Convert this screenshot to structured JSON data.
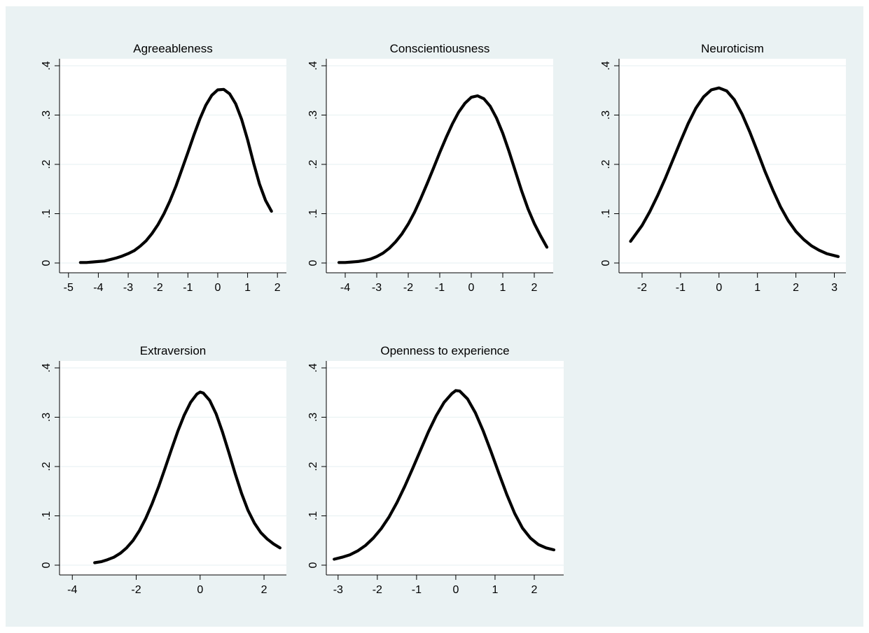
{
  "chart_data": [
    {
      "type": "line",
      "title": "Agreeableness",
      "xlabel": "",
      "ylabel": "",
      "xlim": [
        -5.3,
        2.3
      ],
      "ylim": [
        0,
        0.4
      ],
      "xticks": [
        -5,
        -4,
        -3,
        -2,
        -1,
        0,
        1,
        2
      ],
      "xtick_labels": [
        "-5",
        "-4",
        "-3",
        "-2",
        "-1",
        "0",
        "1",
        "2"
      ],
      "yticks": [
        0,
        0.1,
        0.2,
        0.3,
        0.4
      ],
      "ytick_labels": [
        "0",
        ".1",
        ".2",
        ".3",
        ".4"
      ],
      "grid": true,
      "series": [
        {
          "x": [
            -4.6,
            -4.4,
            -4.2,
            -4.0,
            -3.8,
            -3.6,
            -3.4,
            -3.2,
            -3.0,
            -2.8,
            -2.6,
            -2.4,
            -2.2,
            -2.0,
            -1.8,
            -1.6,
            -1.4,
            -1.2,
            -1.0,
            -0.8,
            -0.6,
            -0.4,
            -0.2,
            0.0,
            0.2,
            0.4,
            0.6,
            0.8,
            1.0,
            1.2,
            1.4,
            1.6,
            1.8
          ],
          "y": [
            0.001,
            0.001,
            0.002,
            0.003,
            0.004,
            0.007,
            0.01,
            0.014,
            0.019,
            0.025,
            0.034,
            0.045,
            0.06,
            0.078,
            0.1,
            0.126,
            0.156,
            0.19,
            0.224,
            0.259,
            0.292,
            0.32,
            0.34,
            0.351,
            0.352,
            0.343,
            0.323,
            0.291,
            0.25,
            0.203,
            0.16,
            0.127,
            0.105
          ]
        }
      ]
    },
    {
      "type": "line",
      "title": "Conscientiousness",
      "xlabel": "",
      "ylabel": "",
      "xlim": [
        -4.6,
        2.6
      ],
      "ylim": [
        0,
        0.4
      ],
      "xticks": [
        -4,
        -3,
        -2,
        -1,
        0,
        1,
        2
      ],
      "xtick_labels": [
        "-4",
        "-3",
        "-2",
        "-1",
        "0",
        "1",
        "2"
      ],
      "yticks": [
        0,
        0.1,
        0.2,
        0.3,
        0.4
      ],
      "ytick_labels": [
        "0",
        ".1",
        ".2",
        ".3",
        ".4"
      ],
      "grid": true,
      "series": [
        {
          "x": [
            -4.2,
            -4.0,
            -3.8,
            -3.6,
            -3.4,
            -3.2,
            -3.0,
            -2.8,
            -2.6,
            -2.4,
            -2.2,
            -2.0,
            -1.8,
            -1.6,
            -1.4,
            -1.2,
            -1.0,
            -0.8,
            -0.6,
            -0.4,
            -0.2,
            0.0,
            0.2,
            0.4,
            0.6,
            0.8,
            1.0,
            1.2,
            1.4,
            1.6,
            1.8,
            2.0,
            2.2,
            2.4
          ],
          "y": [
            0.001,
            0.001,
            0.002,
            0.003,
            0.005,
            0.008,
            0.013,
            0.02,
            0.03,
            0.043,
            0.059,
            0.079,
            0.103,
            0.131,
            0.161,
            0.192,
            0.224,
            0.254,
            0.282,
            0.306,
            0.324,
            0.336,
            0.339,
            0.333,
            0.318,
            0.294,
            0.263,
            0.226,
            0.186,
            0.146,
            0.11,
            0.08,
            0.055,
            0.032
          ]
        }
      ]
    },
    {
      "type": "line",
      "title": "Neuroticism",
      "xlabel": "",
      "ylabel": "",
      "xlim": [
        -2.6,
        3.3
      ],
      "ylim": [
        0,
        0.4
      ],
      "xticks": [
        -2,
        -1,
        0,
        1,
        2,
        3
      ],
      "xtick_labels": [
        "-2",
        "-1",
        "0",
        "1",
        "2",
        "3"
      ],
      "yticks": [
        0,
        0.1,
        0.2,
        0.3,
        0.4
      ],
      "ytick_labels": [
        "0",
        ".1",
        ".2",
        ".3",
        ".4"
      ],
      "grid": true,
      "series": [
        {
          "x": [
            -2.3,
            -2.0,
            -1.8,
            -1.6,
            -1.4,
            -1.2,
            -1.0,
            -0.8,
            -0.6,
            -0.4,
            -0.2,
            0.0,
            0.2,
            0.4,
            0.6,
            0.8,
            1.0,
            1.2,
            1.4,
            1.6,
            1.8,
            2.0,
            2.2,
            2.4,
            2.6,
            2.8,
            3.1
          ],
          "y": [
            0.044,
            0.076,
            0.104,
            0.136,
            0.171,
            0.209,
            0.247,
            0.283,
            0.314,
            0.337,
            0.351,
            0.355,
            0.349,
            0.331,
            0.302,
            0.266,
            0.226,
            0.185,
            0.148,
            0.114,
            0.086,
            0.064,
            0.048,
            0.035,
            0.026,
            0.019,
            0.013
          ]
        }
      ]
    },
    {
      "type": "line",
      "title": "Extraversion",
      "xlabel": "",
      "ylabel": "",
      "xlim": [
        -4.4,
        2.7
      ],
      "ylim": [
        0,
        0.4
      ],
      "xticks": [
        -4,
        -2,
        0,
        2
      ],
      "xtick_labels": [
        "-4",
        "-2",
        "0",
        "2"
      ],
      "yticks": [
        0,
        0.1,
        0.2,
        0.3,
        0.4
      ],
      "ytick_labels": [
        "0",
        ".1",
        ".2",
        ".3",
        ".4"
      ],
      "grid": true,
      "series": [
        {
          "x": [
            -3.3,
            -3.1,
            -2.9,
            -2.7,
            -2.5,
            -2.3,
            -2.1,
            -1.9,
            -1.7,
            -1.5,
            -1.3,
            -1.1,
            -0.9,
            -0.7,
            -0.5,
            -0.3,
            -0.1,
            0.0,
            0.1,
            0.3,
            0.5,
            0.7,
            0.9,
            1.1,
            1.3,
            1.5,
            1.7,
            1.9,
            2.1,
            2.3,
            2.5
          ],
          "y": [
            0.005,
            0.007,
            0.011,
            0.016,
            0.024,
            0.035,
            0.05,
            0.07,
            0.095,
            0.125,
            0.159,
            0.196,
            0.234,
            0.271,
            0.304,
            0.33,
            0.347,
            0.351,
            0.349,
            0.334,
            0.307,
            0.27,
            0.228,
            0.185,
            0.145,
            0.111,
            0.085,
            0.066,
            0.053,
            0.043,
            0.035
          ]
        }
      ]
    },
    {
      "type": "line",
      "title": "Openness to experience",
      "xlabel": "",
      "ylabel": "",
      "xlim": [
        -3.3,
        2.75
      ],
      "ylim": [
        0,
        0.4
      ],
      "xticks": [
        -3,
        -2,
        -1,
        0,
        1,
        2
      ],
      "xtick_labels": [
        "-3",
        "-2",
        "-1",
        "0",
        "1",
        "2"
      ],
      "yticks": [
        0,
        0.1,
        0.2,
        0.3,
        0.4
      ],
      "ytick_labels": [
        "0",
        ".1",
        ".2",
        ".3",
        ".4"
      ],
      "grid": true,
      "series": [
        {
          "x": [
            -3.1,
            -2.9,
            -2.7,
            -2.5,
            -2.3,
            -2.1,
            -1.9,
            -1.7,
            -1.5,
            -1.3,
            -1.1,
            -0.9,
            -0.7,
            -0.5,
            -0.3,
            -0.1,
            0.0,
            0.1,
            0.3,
            0.5,
            0.7,
            0.9,
            1.1,
            1.3,
            1.5,
            1.7,
            1.9,
            2.1,
            2.3,
            2.5
          ],
          "y": [
            0.012,
            0.016,
            0.021,
            0.029,
            0.04,
            0.055,
            0.074,
            0.098,
            0.127,
            0.16,
            0.196,
            0.233,
            0.27,
            0.303,
            0.33,
            0.348,
            0.354,
            0.353,
            0.337,
            0.309,
            0.272,
            0.23,
            0.186,
            0.143,
            0.105,
            0.075,
            0.055,
            0.042,
            0.035,
            0.031
          ]
        }
      ]
    }
  ]
}
